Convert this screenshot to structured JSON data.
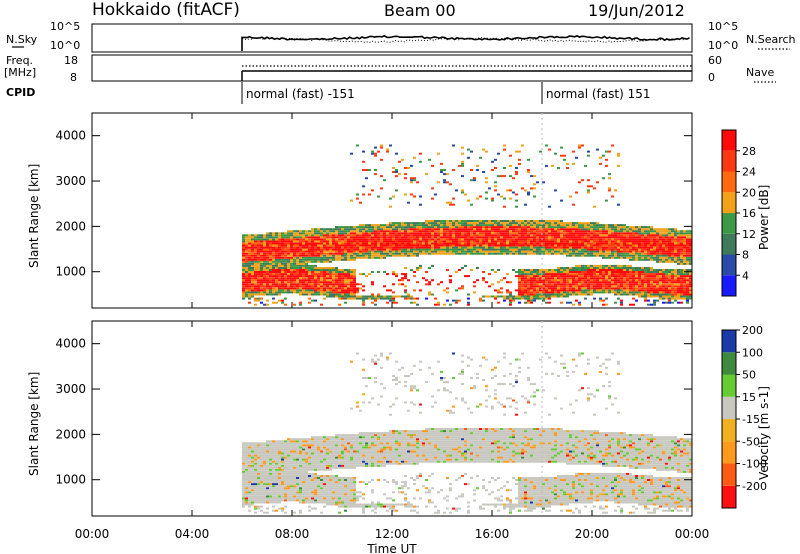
{
  "header": {
    "station": "Hokkaido (fitACF)",
    "beam": "Beam 00",
    "date": "19/Jun/2012"
  },
  "noise_panel": {
    "left_label": "N.Sky",
    "right_label": "N.Search",
    "left_ticks": [
      "10^5",
      "10^0"
    ],
    "right_ticks": [
      "10^5",
      "10^0"
    ]
  },
  "freq_panel": {
    "left_label_1": "Freq.",
    "left_label_2": "[MHz]",
    "left_ticks": [
      "18",
      "8"
    ],
    "right_ticks": [
      "60",
      "0"
    ],
    "right_label": "Nave"
  },
  "cpid": {
    "label": "CPID",
    "segments": [
      "normal (fast) -151",
      "normal (fast) 151"
    ]
  },
  "colors": {
    "power_scale": [
      "#1a1aff",
      "#2b4ba8",
      "#3f7a5a",
      "#3c9a46",
      "#f2a21a",
      "#ff6a10",
      "#ff3a12",
      "#ff0a0a"
    ],
    "velocity_scale": [
      "#ff1010",
      "#ff5a14",
      "#ff9a1e",
      "#f0b020",
      "#c8c8c0",
      "#66cc33",
      "#3f8a3f",
      "#1a3aa8"
    ]
  },
  "chart_data": [
    {
      "type": "heatmap",
      "title": "Power",
      "ylabel": "Slant Range [km]",
      "yticks": [
        "1000",
        "2000",
        "3000",
        "4000"
      ],
      "ylim": [
        200,
        4500
      ],
      "xlim": [
        0,
        24
      ],
      "colorbar": {
        "label": "Power [dB]",
        "ticks": [
          "4",
          "8",
          "12",
          "16",
          "20",
          "24",
          "28"
        ],
        "range": [
          0,
          32
        ]
      },
      "features": [
        {
          "name": "band-low",
          "x_range": [
            6,
            24
          ],
          "y_center_km": 800,
          "dominant_value_db": 26
        },
        {
          "name": "band-main",
          "x_range": [
            6,
            24
          ],
          "y_center_km": 1600,
          "dominant_value_db": 27
        },
        {
          "name": "upper-patches",
          "x_range": [
            10,
            21
          ],
          "y_center_km": 3000,
          "dominant_value_db": 14
        }
      ]
    },
    {
      "type": "heatmap",
      "title": "Velocity",
      "ylabel": "Slant Range [km]",
      "yticks": [
        "1000",
        "2000",
        "3000",
        "4000"
      ],
      "ylim": [
        200,
        4500
      ],
      "xlim": [
        0,
        24
      ],
      "colorbar": {
        "label": "Velocity [m s-1]",
        "ticks": [
          "200",
          "100",
          "50",
          "15",
          "-15",
          "-50",
          "-100",
          "-200"
        ],
        "range": [
          -250,
          250
        ]
      },
      "features": [
        {
          "name": "ground-scatter",
          "x_range": [
            6,
            24
          ],
          "y_center_km": 1300,
          "dominant_value_ms": 0
        },
        {
          "name": "upper-patches",
          "x_range": [
            10,
            21
          ],
          "y_center_km": 3000,
          "dominant_value_ms": 0
        }
      ]
    }
  ],
  "x_axis": {
    "label": "Time UT",
    "ticks": [
      "00:00",
      "04:00",
      "08:00",
      "12:00",
      "16:00",
      "20:00",
      "00:00"
    ]
  }
}
